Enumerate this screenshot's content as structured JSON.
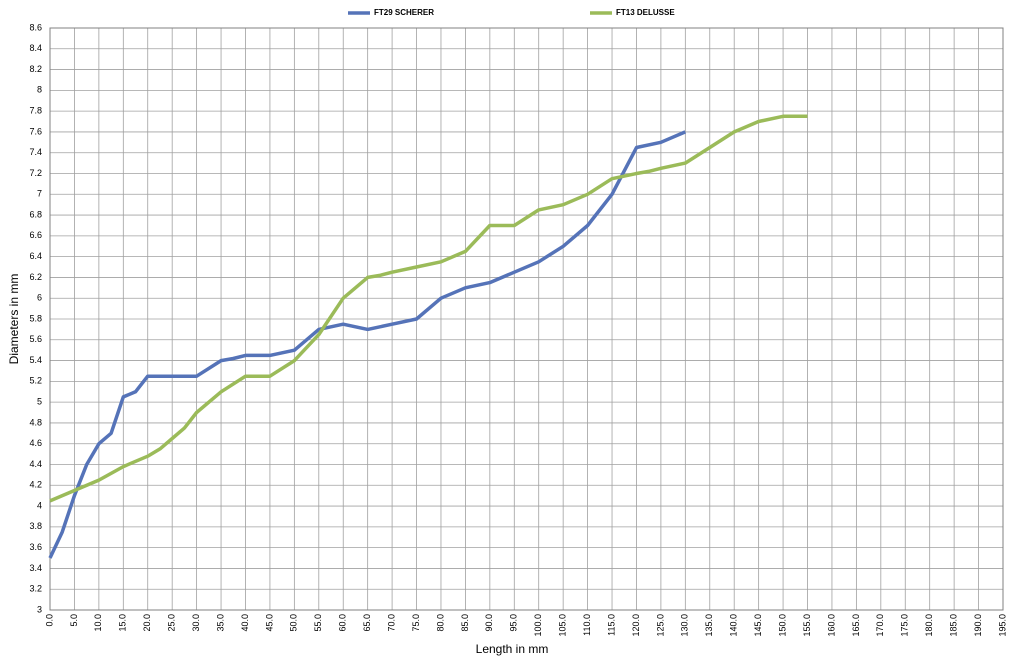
{
  "chart_data": {
    "type": "line",
    "x_label": "Length in mm",
    "y_label": "Diameters  in mm",
    "xlim": [
      0,
      195
    ],
    "ylim": [
      3,
      8.6
    ],
    "xticks": [
      {
        "value": 0,
        "label": "0.0"
      },
      {
        "value": 5,
        "label": "5.0"
      },
      {
        "value": 10,
        "label": "10.0"
      },
      {
        "value": 15,
        "label": "15.0"
      },
      {
        "value": 20,
        "label": "20.0"
      },
      {
        "value": 25,
        "label": "25.0"
      },
      {
        "value": 30,
        "label": "30.0"
      },
      {
        "value": 35,
        "label": "35.0"
      },
      {
        "value": 40,
        "label": "40.0"
      },
      {
        "value": 45,
        "label": "45.0"
      },
      {
        "value": 50,
        "label": "50.0"
      },
      {
        "value": 55,
        "label": "55.0"
      },
      {
        "value": 60,
        "label": "60.0"
      },
      {
        "value": 65,
        "label": "65.0"
      },
      {
        "value": 70,
        "label": "70.0"
      },
      {
        "value": 75,
        "label": "75.0"
      },
      {
        "value": 80,
        "label": "80.0"
      },
      {
        "value": 85,
        "label": "85.0"
      },
      {
        "value": 90,
        "label": "90.0"
      },
      {
        "value": 95,
        "label": "95.0"
      },
      {
        "value": 100,
        "label": "100.0"
      },
      {
        "value": 105,
        "label": "105.0"
      },
      {
        "value": 110,
        "label": "110.0"
      },
      {
        "value": 115,
        "label": "115.0"
      },
      {
        "value": 120,
        "label": "120.0"
      },
      {
        "value": 125,
        "label": "125.0"
      },
      {
        "value": 130,
        "label": "130.0"
      },
      {
        "value": 135,
        "label": "135.0"
      },
      {
        "value": 140,
        "label": "140.0"
      },
      {
        "value": 145,
        "label": "145.0"
      },
      {
        "value": 150,
        "label": "150.0"
      },
      {
        "value": 155,
        "label": "155.0"
      },
      {
        "value": 160,
        "label": "160.0"
      },
      {
        "value": 165,
        "label": "165.0"
      },
      {
        "value": 170,
        "label": "170.0"
      },
      {
        "value": 175,
        "label": "175.0"
      },
      {
        "value": 180,
        "label": "180.0"
      },
      {
        "value": 185,
        "label": "185.0"
      },
      {
        "value": 190,
        "label": "190.0"
      },
      {
        "value": 195,
        "label": "195.0"
      }
    ],
    "yticks": [
      3,
      3.2,
      3.4,
      3.6,
      3.8,
      4,
      4.2,
      4.4,
      4.6,
      4.8,
      5,
      5.2,
      5.4,
      5.6,
      5.8,
      6,
      6.2,
      6.4,
      6.6,
      6.8,
      7,
      7.2,
      7.4,
      7.6,
      7.8,
      8,
      8.2,
      8.4,
      8.6
    ],
    "grid": true,
    "legend": "top",
    "series": [
      {
        "name": "FT29 SCHERER",
        "color": "#5573b8",
        "x": [
          0,
          2.5,
          5,
          7.5,
          10,
          12.5,
          15,
          17.5,
          20,
          25,
          30,
          35,
          37.5,
          40,
          45,
          50,
          55,
          60,
          65,
          70,
          75,
          80,
          85,
          90,
          95,
          100,
          105,
          110,
          115,
          120,
          125,
          130
        ],
        "values": [
          3.5,
          3.75,
          4.1,
          4.4,
          4.6,
          4.7,
          5.05,
          5.1,
          5.25,
          5.25,
          5.25,
          5.4,
          5.42,
          5.45,
          5.45,
          5.5,
          5.7,
          5.75,
          5.7,
          5.75,
          5.8,
          6.0,
          6.1,
          6.15,
          6.25,
          6.35,
          6.5,
          6.7,
          7.0,
          7.45,
          7.5,
          7.6
        ]
      },
      {
        "name": "FT13 DELUSSE",
        "color": "#9bbb59",
        "x": [
          0,
          5,
          10,
          15,
          20,
          22.5,
          25,
          27.5,
          30,
          35,
          40,
          45,
          50,
          55,
          60,
          65,
          67.5,
          70,
          75,
          80,
          85,
          90,
          95,
          100,
          105,
          110,
          115,
          120,
          122.5,
          125,
          130,
          135,
          140,
          145,
          150,
          155
        ],
        "values": [
          4.05,
          4.15,
          4.25,
          4.38,
          4.48,
          4.55,
          4.65,
          4.75,
          4.9,
          5.1,
          5.25,
          5.25,
          5.4,
          5.65,
          6.0,
          6.2,
          6.22,
          6.25,
          6.3,
          6.35,
          6.45,
          6.7,
          6.7,
          6.85,
          6.9,
          7.0,
          7.15,
          7.2,
          7.22,
          7.25,
          7.3,
          7.45,
          7.6,
          7.7,
          7.75,
          7.75
        ]
      }
    ]
  }
}
